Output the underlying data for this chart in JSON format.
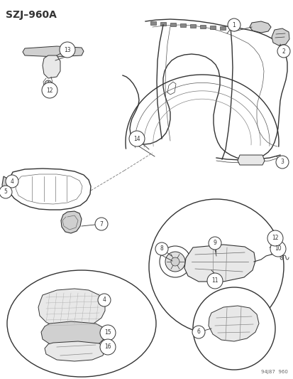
{
  "title": "SZJ–960A",
  "footer": "94J87  960",
  "bg_color": "#ffffff",
  "fig_width": 4.14,
  "fig_height": 5.33,
  "dpi": 100,
  "lw_main": 1.0,
  "lw_thin": 0.5,
  "line_color": "#333333",
  "gray_fill": "#d0d0d0",
  "light_fill": "#e8e8e8"
}
